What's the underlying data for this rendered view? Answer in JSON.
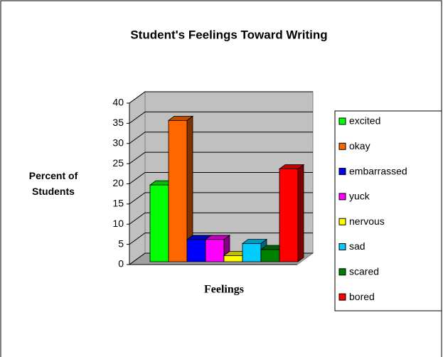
{
  "chart_data": {
    "type": "bar3d",
    "title": "Student's Feelings Toward Writing",
    "ylabel": "Percent of Students",
    "xlabel": "Feelings",
    "categories": [
      "excited",
      "okay",
      "embarrassed",
      "yuck",
      "nervous",
      "sad",
      "scared",
      "bored"
    ],
    "series": [
      {
        "name": null,
        "values": [
          19,
          35,
          5.5,
          5.5,
          1.5,
          4.5,
          3,
          23
        ]
      }
    ],
    "colors": [
      "#00ff00",
      "#ff6600",
      "#0000ff",
      "#ff00ff",
      "#ffff00",
      "#00ccff",
      "#008000",
      "#ff0000"
    ],
    "ylim": [
      0,
      40
    ],
    "yticks": [
      0,
      5,
      10,
      15,
      20,
      25,
      30,
      35,
      40
    ],
    "grid": true,
    "legend": "right"
  }
}
